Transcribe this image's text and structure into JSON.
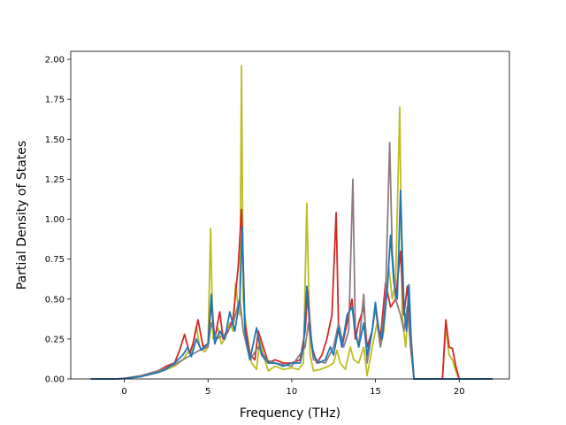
{
  "chart_data": {
    "type": "line",
    "title": "",
    "xlabel": "Frequency (THz)",
    "ylabel": "Partial Density of States",
    "xlim": [
      -3.2,
      23.0
    ],
    "ylim": [
      0.0,
      2.05
    ],
    "xticks": [
      0,
      5,
      10,
      15,
      20
    ],
    "yticks": [
      0.0,
      0.25,
      0.5,
      0.75,
      1.0,
      1.25,
      1.5,
      1.75,
      2.0
    ],
    "xtick_labels": [
      "0",
      "5",
      "10",
      "15",
      "20"
    ],
    "ytick_labels": [
      "0.00",
      "0.25",
      "0.50",
      "0.75",
      "1.00",
      "1.25",
      "1.50",
      "1.75",
      "2.00"
    ],
    "grid": false,
    "legend": "none",
    "series": [
      {
        "color": "#bcbd22",
        "points": [
          [
            -2,
            0
          ],
          [
            -0.5,
            0
          ],
          [
            0,
            0.003
          ],
          [
            1,
            0.015
          ],
          [
            2,
            0.04
          ],
          [
            2.5,
            0.06
          ],
          [
            3,
            0.08
          ],
          [
            3.5,
            0.12
          ],
          [
            3.8,
            0.17
          ],
          [
            4,
            0.16
          ],
          [
            4.3,
            0.33
          ],
          [
            4.5,
            0.2
          ],
          [
            4.8,
            0.17
          ],
          [
            5,
            0.2
          ],
          [
            5.15,
            0.94
          ],
          [
            5.3,
            0.25
          ],
          [
            5.6,
            0.32
          ],
          [
            5.8,
            0.22
          ],
          [
            6.0,
            0.25
          ],
          [
            6.3,
            0.35
          ],
          [
            6.5,
            0.3
          ],
          [
            6.65,
            0.6
          ],
          [
            6.8,
            0.45
          ],
          [
            6.9,
            0.4
          ],
          [
            7.0,
            1.96
          ],
          [
            7.1,
            0.5
          ],
          [
            7.3,
            0.3
          ],
          [
            7.6,
            0.1
          ],
          [
            7.9,
            0.06
          ],
          [
            8.1,
            0.25
          ],
          [
            8.3,
            0.15
          ],
          [
            8.6,
            0.05
          ],
          [
            9.0,
            0.08
          ],
          [
            9.5,
            0.06
          ],
          [
            10.0,
            0.07
          ],
          [
            10.4,
            0.06
          ],
          [
            10.7,
            0.1
          ],
          [
            10.9,
            1.1
          ],
          [
            11.1,
            0.15
          ],
          [
            11.3,
            0.05
          ],
          [
            11.7,
            0.06
          ],
          [
            12.2,
            0.08
          ],
          [
            12.5,
            0.1
          ],
          [
            12.7,
            0.18
          ],
          [
            12.9,
            0.1
          ],
          [
            13.2,
            0.06
          ],
          [
            13.5,
            0.2
          ],
          [
            13.7,
            0.12
          ],
          [
            14.0,
            0.1
          ],
          [
            14.3,
            0.2
          ],
          [
            14.5,
            0.02
          ],
          [
            14.9,
            0.25
          ],
          [
            15.1,
            0.35
          ],
          [
            15.3,
            0.2
          ],
          [
            15.5,
            0.3
          ],
          [
            15.8,
            0.7
          ],
          [
            16.0,
            0.5
          ],
          [
            16.2,
            0.6
          ],
          [
            16.45,
            1.7
          ],
          [
            16.6,
            0.4
          ],
          [
            16.8,
            0.2
          ],
          [
            17.0,
            0.5
          ],
          [
            17.1,
            0.2
          ],
          [
            17.3,
            0.0
          ],
          [
            19.0,
            0.0
          ],
          [
            19.2,
            0.33
          ],
          [
            19.4,
            0.15
          ],
          [
            19.6,
            0.12
          ],
          [
            19.8,
            0.05
          ],
          [
            20.0,
            0.0
          ],
          [
            22.0,
            0.0
          ]
        ]
      },
      {
        "color": "#d62728",
        "points": [
          [
            -2,
            0
          ],
          [
            -0.5,
            0
          ],
          [
            0,
            0.004
          ],
          [
            1,
            0.02
          ],
          [
            2,
            0.05
          ],
          [
            2.5,
            0.08
          ],
          [
            3,
            0.1
          ],
          [
            3.3,
            0.18
          ],
          [
            3.6,
            0.28
          ],
          [
            3.9,
            0.16
          ],
          [
            4.1,
            0.22
          ],
          [
            4.4,
            0.37
          ],
          [
            4.7,
            0.2
          ],
          [
            5,
            0.22
          ],
          [
            5.2,
            0.48
          ],
          [
            5.4,
            0.25
          ],
          [
            5.7,
            0.42
          ],
          [
            5.9,
            0.25
          ],
          [
            6.2,
            0.3
          ],
          [
            6.5,
            0.38
          ],
          [
            6.8,
            0.7
          ],
          [
            7.0,
            1.06
          ],
          [
            7.2,
            0.35
          ],
          [
            7.5,
            0.15
          ],
          [
            7.8,
            0.12
          ],
          [
            8.0,
            0.3
          ],
          [
            8.3,
            0.2
          ],
          [
            8.6,
            0.1
          ],
          [
            9.0,
            0.12
          ],
          [
            9.5,
            0.1
          ],
          [
            10.0,
            0.1
          ],
          [
            10.5,
            0.12
          ],
          [
            10.8,
            0.3
          ],
          [
            10.95,
            0.55
          ],
          [
            11.2,
            0.2
          ],
          [
            11.5,
            0.1
          ],
          [
            11.8,
            0.15
          ],
          [
            12.1,
            0.25
          ],
          [
            12.4,
            0.4
          ],
          [
            12.65,
            1.04
          ],
          [
            12.8,
            0.3
          ],
          [
            13.0,
            0.2
          ],
          [
            13.3,
            0.35
          ],
          [
            13.6,
            0.5
          ],
          [
            13.8,
            0.25
          ],
          [
            14.0,
            0.35
          ],
          [
            14.3,
            0.45
          ],
          [
            14.5,
            0.2
          ],
          [
            14.8,
            0.3
          ],
          [
            15.0,
            0.45
          ],
          [
            15.3,
            0.25
          ],
          [
            15.6,
            0.6
          ],
          [
            15.9,
            0.45
          ],
          [
            16.2,
            0.5
          ],
          [
            16.5,
            0.8
          ],
          [
            16.7,
            0.4
          ],
          [
            16.9,
            0.58
          ],
          [
            17.1,
            0.3
          ],
          [
            17.3,
            0.0
          ],
          [
            19.0,
            0.0
          ],
          [
            19.2,
            0.37
          ],
          [
            19.4,
            0.2
          ],
          [
            19.6,
            0.19
          ],
          [
            19.8,
            0.08
          ],
          [
            20.0,
            0.0
          ],
          [
            22.0,
            0.0
          ]
        ]
      },
      {
        "color": "#8c7b80",
        "points": [
          [
            -2,
            0
          ],
          [
            -0.5,
            0
          ],
          [
            0,
            0.003
          ],
          [
            1,
            0.02
          ],
          [
            2,
            0.05
          ],
          [
            3,
            0.09
          ],
          [
            3.5,
            0.12
          ],
          [
            4,
            0.15
          ],
          [
            4.5,
            0.18
          ],
          [
            5,
            0.2
          ],
          [
            5.2,
            0.35
          ],
          [
            5.5,
            0.25
          ],
          [
            6,
            0.28
          ],
          [
            6.5,
            0.35
          ],
          [
            6.9,
            0.5
          ],
          [
            7.1,
            0.3
          ],
          [
            7.5,
            0.12
          ],
          [
            8,
            0.2
          ],
          [
            8.5,
            0.12
          ],
          [
            9,
            0.1
          ],
          [
            10,
            0.08
          ],
          [
            10.8,
            0.2
          ],
          [
            11.0,
            0.35
          ],
          [
            11.3,
            0.12
          ],
          [
            12,
            0.1
          ],
          [
            12.5,
            0.2
          ],
          [
            12.8,
            0.35
          ],
          [
            13.1,
            0.2
          ],
          [
            13.4,
            0.3
          ],
          [
            13.65,
            1.25
          ],
          [
            13.8,
            0.3
          ],
          [
            14.0,
            0.2
          ],
          [
            14.3,
            0.53
          ],
          [
            14.5,
            0.1
          ],
          [
            14.8,
            0.3
          ],
          [
            15.0,
            0.45
          ],
          [
            15.3,
            0.2
          ],
          [
            15.6,
            0.5
          ],
          [
            15.85,
            1.48
          ],
          [
            16.0,
            0.8
          ],
          [
            16.2,
            0.5
          ],
          [
            16.5,
            0.4
          ],
          [
            16.7,
            0.3
          ],
          [
            16.9,
            0.45
          ],
          [
            17.1,
            0.2
          ],
          [
            17.3,
            0.0
          ],
          [
            22.0,
            0.0
          ]
        ]
      },
      {
        "color": "#1f77b4",
        "points": [
          [
            -2,
            0
          ],
          [
            -0.5,
            0
          ],
          [
            0,
            0.003
          ],
          [
            1,
            0.015
          ],
          [
            2,
            0.04
          ],
          [
            2.5,
            0.06
          ],
          [
            3,
            0.1
          ],
          [
            3.5,
            0.15
          ],
          [
            3.8,
            0.2
          ],
          [
            4,
            0.14
          ],
          [
            4.3,
            0.25
          ],
          [
            4.6,
            0.18
          ],
          [
            5,
            0.22
          ],
          [
            5.2,
            0.53
          ],
          [
            5.4,
            0.22
          ],
          [
            5.7,
            0.3
          ],
          [
            6.0,
            0.25
          ],
          [
            6.3,
            0.42
          ],
          [
            6.6,
            0.3
          ],
          [
            6.9,
            0.5
          ],
          [
            7.05,
            0.95
          ],
          [
            7.2,
            0.3
          ],
          [
            7.5,
            0.12
          ],
          [
            7.9,
            0.32
          ],
          [
            8.2,
            0.15
          ],
          [
            8.6,
            0.1
          ],
          [
            9.0,
            0.1
          ],
          [
            9.5,
            0.08
          ],
          [
            10.0,
            0.1
          ],
          [
            10.5,
            0.1
          ],
          [
            10.7,
            0.2
          ],
          [
            10.9,
            0.58
          ],
          [
            11.1,
            0.3
          ],
          [
            11.3,
            0.15
          ],
          [
            11.6,
            0.1
          ],
          [
            12.0,
            0.12
          ],
          [
            12.3,
            0.2
          ],
          [
            12.5,
            0.15
          ],
          [
            12.8,
            0.32
          ],
          [
            13.0,
            0.2
          ],
          [
            13.3,
            0.4
          ],
          [
            13.6,
            0.45
          ],
          [
            13.8,
            0.3
          ],
          [
            14.0,
            0.2
          ],
          [
            14.3,
            0.35
          ],
          [
            14.5,
            0.15
          ],
          [
            14.8,
            0.3
          ],
          [
            15.0,
            0.48
          ],
          [
            15.2,
            0.3
          ],
          [
            15.4,
            0.25
          ],
          [
            15.7,
            0.55
          ],
          [
            15.9,
            0.9
          ],
          [
            16.1,
            0.6
          ],
          [
            16.3,
            0.5
          ],
          [
            16.5,
            1.18
          ],
          [
            16.7,
            0.45
          ],
          [
            16.85,
            0.3
          ],
          [
            17.0,
            0.59
          ],
          [
            17.15,
            0.2
          ],
          [
            17.3,
            0.0
          ],
          [
            22.0,
            0.0
          ]
        ]
      }
    ]
  }
}
